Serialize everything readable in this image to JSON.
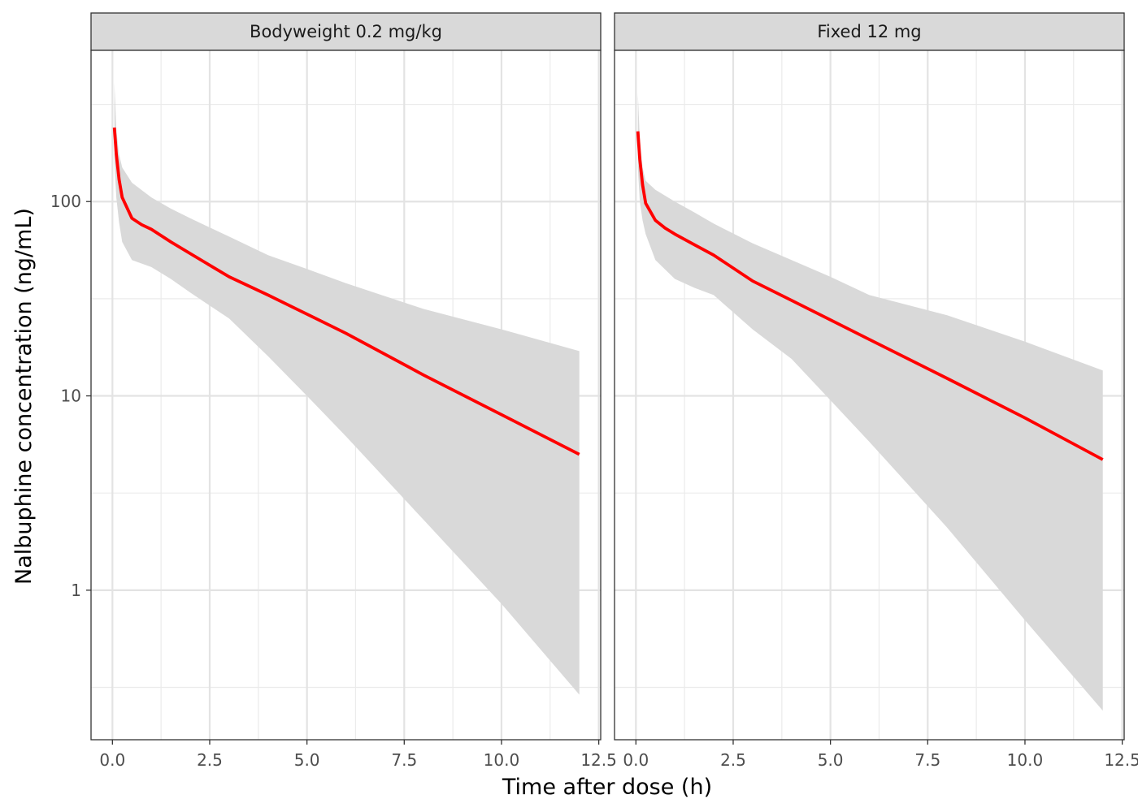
{
  "chart_data": {
    "type": "line",
    "xlabel": "Time after dose (h)",
    "ylabel": "Nalbuphine concentration (ng/mL)",
    "x_scale": "linear",
    "y_scale": "log10",
    "xlim": [
      -0.55,
      12.55
    ],
    "ylim": [
      0.17,
      600
    ],
    "x_ticks": [
      0,
      2.5,
      5,
      7.5,
      10,
      12.5
    ],
    "x_tick_labels": [
      "0.0",
      "2.5",
      "5.0",
      "7.5",
      "10.0",
      "12.5"
    ],
    "y_ticks": [
      1,
      10,
      100
    ],
    "y_tick_labels": [
      "1",
      "10",
      "100"
    ],
    "grid": true,
    "line_color": "#ff0000",
    "ribbon_color": "#d9d9d9",
    "strip_color": "#d9d9d9",
    "panels": [
      {
        "title": "Bodyweight 0.2 mg/kg",
        "series": [
          {
            "x": [
              0.05,
              0.1,
              0.17,
              0.25,
              0.5,
              0.75,
              1,
              1.5,
              2,
              3,
              4,
              6,
              8,
              10,
              12
            ],
            "y": [
              240,
              175,
              130,
              105,
              82,
              76,
              72,
              62,
              54,
              41,
              33,
              21,
              12.8,
              8,
              5
            ]
          }
        ],
        "ribbon": {
          "x": [
            0.05,
            0.1,
            0.17,
            0.25,
            0.5,
            1,
            1.5,
            2,
            3,
            4,
            5,
            6,
            8,
            10,
            12
          ],
          "lower": [
            160,
            105,
            78,
            62,
            50,
            46,
            40,
            34,
            25,
            16,
            10,
            6.2,
            2.3,
            0.85,
            0.29
          ],
          "upper": [
            410,
            235,
            175,
            150,
            125,
            105,
            92,
            82,
            66,
            53,
            45,
            38,
            28,
            22,
            17
          ]
        }
      },
      {
        "title": "Fixed 12 mg",
        "series": [
          {
            "x": [
              0.05,
              0.1,
              0.17,
              0.25,
              0.5,
              0.75,
              1,
              1.5,
              2,
              3,
              4,
              6,
              8,
              10,
              12
            ],
            "y": [
              230,
              165,
              122,
              98,
              80,
              73,
              68,
              60,
              53,
              39,
              31,
              19.5,
              12.3,
              7.7,
              4.7
            ]
          }
        ],
        "ribbon": {
          "x": [
            0.05,
            0.1,
            0.17,
            0.25,
            0.5,
            1,
            1.5,
            2,
            3,
            4,
            5,
            6,
            8,
            10,
            12
          ],
          "lower": [
            150,
            100,
            80,
            68,
            50,
            40,
            36,
            33,
            22,
            15.5,
            9.5,
            5.8,
            2.1,
            0.7,
            0.24
          ],
          "upper": [
            360,
            210,
            150,
            128,
            115,
            100,
            88,
            77,
            61,
            50,
            41,
            33,
            26,
            19,
            13.5
          ]
        }
      }
    ]
  }
}
